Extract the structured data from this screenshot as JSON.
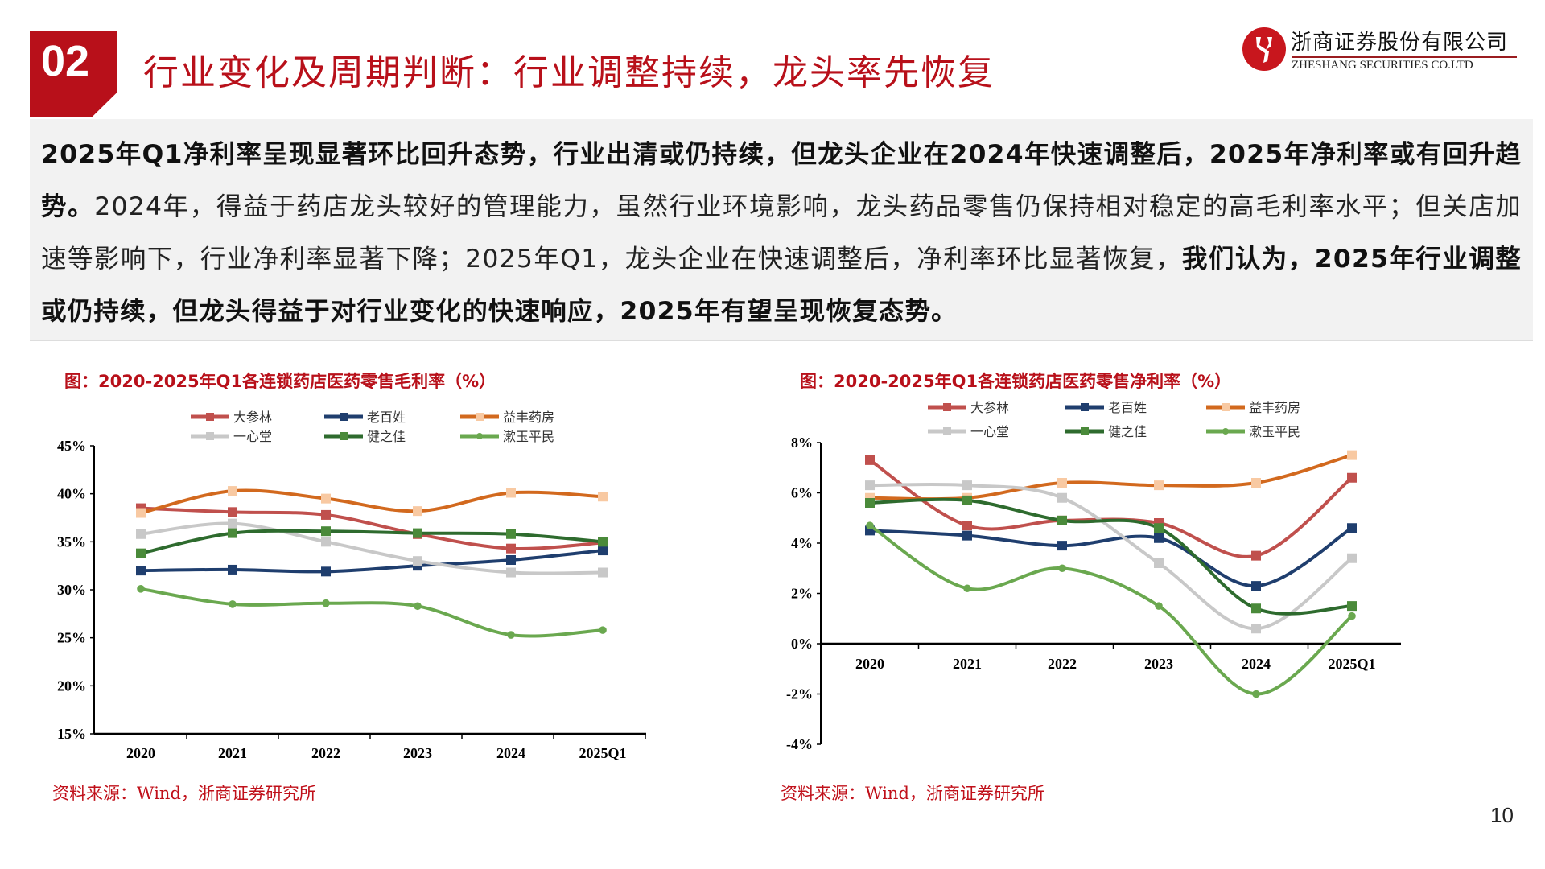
{
  "header": {
    "section_number": "02",
    "title": "行业变化及周期判断：行业调整持续，龙头率先恢复",
    "logo": {
      "cn": "浙商证券股份有限公司",
      "en": "ZHESHANG SECURITIES CO.LTD",
      "color": "#c8161d"
    }
  },
  "summary": {
    "bold_1": "2025年Q1净利率呈现显著环比回升态势，行业出清或仍持续，但龙头企业在2024年快速调整后，2025年净利率或有回升趋势。",
    "normal": "2024年，得益于药店龙头较好的管理能力，虽然行业环境影响，龙头药品零售仍保持相对稳定的高毛利率水平；但关店加速等影响下，行业净利率显著下降；2025年Q1，龙头企业在快速调整后，净利率环比显著恢复，",
    "bold_2": "我们认为，2025年行业调整或仍持续，但龙头得益于对行业变化的快速响应，2025年有望呈现恢复态势。"
  },
  "chart_data": [
    {
      "type": "line",
      "title": "图：2020-2025年Q1各连锁药店医药零售毛利率（%）",
      "categories": [
        "2020",
        "2021",
        "2022",
        "2023",
        "2024",
        "2025Q1"
      ],
      "ylim": [
        15,
        45
      ],
      "yticks": [
        "15%",
        "20%",
        "25%",
        "30%",
        "35%",
        "40%",
        "45%"
      ],
      "ytick_values": [
        15,
        20,
        25,
        30,
        35,
        40,
        45
      ],
      "legend": "top",
      "grid": false,
      "series": [
        {
          "name": "大参林",
          "color": "#c0504d",
          "marker": "square",
          "marker_color": "#c0504d",
          "values": [
            38.5,
            38.1,
            37.8,
            35.8,
            34.3,
            34.9
          ]
        },
        {
          "name": "老百姓",
          "color": "#1f3e6e",
          "marker": "square",
          "marker_color": "#1f3e6e",
          "values": [
            32.0,
            32.1,
            31.9,
            32.5,
            33.1,
            34.1
          ]
        },
        {
          "name": "益丰药房",
          "color": "#d2691e",
          "marker": "square",
          "marker_color": "#f8c9a2",
          "values": [
            38.0,
            40.3,
            39.5,
            38.2,
            40.1,
            39.7
          ]
        },
        {
          "name": "一心堂",
          "color": "#c8c8c8",
          "marker": "square",
          "marker_color": "#c8c8c8",
          "values": [
            35.8,
            36.9,
            35.0,
            33.0,
            31.8,
            31.8
          ]
        },
        {
          "name": "健之佳",
          "color": "#2e6b2e",
          "marker": "square",
          "marker_color": "#4a8a3a",
          "values": [
            33.8,
            35.9,
            36.1,
            35.9,
            35.8,
            35.0
          ]
        },
        {
          "name": "漱玉平民",
          "color": "#6aa84f",
          "marker": "diamond",
          "marker_color": "#6aa84f",
          "values": [
            30.1,
            28.5,
            28.6,
            28.3,
            25.3,
            25.8
          ]
        }
      ],
      "source": "资料来源：Wind，浙商证券研究所"
    },
    {
      "type": "line",
      "title": "图：2020-2025年Q1各连锁药店医药零售净利率（%）",
      "categories": [
        "2020",
        "2021",
        "2022",
        "2023",
        "2024",
        "2025Q1"
      ],
      "ylim": [
        -4,
        8
      ],
      "yticks": [
        "-4%",
        "-2%",
        "0%",
        "2%",
        "4%",
        "6%",
        "8%"
      ],
      "ytick_values": [
        -4,
        -2,
        0,
        2,
        4,
        6,
        8
      ],
      "legend": "top",
      "grid": false,
      "series": [
        {
          "name": "大参林",
          "color": "#c0504d",
          "marker": "square",
          "marker_color": "#c0504d",
          "values": [
            7.3,
            4.7,
            4.9,
            4.8,
            3.5,
            6.6
          ]
        },
        {
          "name": "老百姓",
          "color": "#1f3e6e",
          "marker": "square",
          "marker_color": "#1f3e6e",
          "values": [
            4.5,
            4.3,
            3.9,
            4.2,
            2.3,
            4.6
          ]
        },
        {
          "name": "益丰药房",
          "color": "#d2691e",
          "marker": "square",
          "marker_color": "#f8c9a2",
          "values": [
            5.8,
            5.8,
            6.4,
            6.3,
            6.4,
            7.5
          ]
        },
        {
          "name": "一心堂",
          "color": "#c8c8c8",
          "marker": "square",
          "marker_color": "#c8c8c8",
          "values": [
            6.3,
            6.3,
            5.8,
            3.2,
            0.6,
            3.4
          ]
        },
        {
          "name": "健之佳",
          "color": "#2e6b2e",
          "marker": "square",
          "marker_color": "#4a8a3a",
          "values": [
            5.6,
            5.7,
            4.9,
            4.6,
            1.4,
            1.5
          ]
        },
        {
          "name": "漱玉平民",
          "color": "#6aa84f",
          "marker": "diamond",
          "marker_color": "#6aa84f",
          "values": [
            4.7,
            2.2,
            3.0,
            1.5,
            -2.0,
            1.1
          ]
        }
      ],
      "source": "资料来源：Wind，浙商证券研究所"
    }
  ],
  "page_number": "10"
}
